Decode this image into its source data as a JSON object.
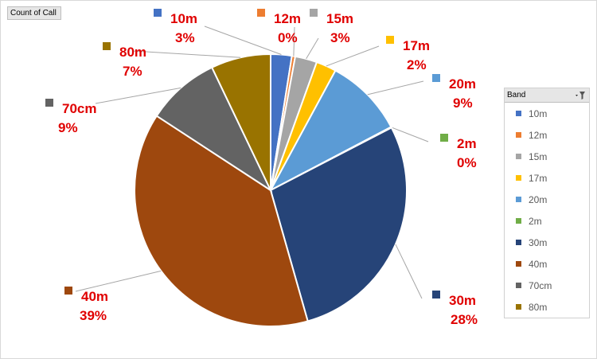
{
  "field_button": "Count of Call",
  "legend": {
    "title": "Band",
    "filter_icon": "filter-dropdown-icon"
  },
  "chart_data": {
    "type": "pie",
    "title": "",
    "categories": [
      "10m",
      "12m",
      "15m",
      "17m",
      "20m",
      "2m",
      "30m",
      "40m",
      "70cm",
      "80m"
    ],
    "values": [
      2.5,
      0.4,
      2.6,
      2.4,
      9.4,
      0.1,
      28.2,
      38.6,
      8.7,
      7.1
    ],
    "percent_labels": [
      "3%",
      "0%",
      "3%",
      "2%",
      "9%",
      "0%",
      "28%",
      "39%",
      "9%",
      "7%"
    ],
    "colors": [
      "#4472c4",
      "#ed7d31",
      "#a5a5a5",
      "#ffc000",
      "#5b9bd5",
      "#70ad47",
      "#264478",
      "#9e480e",
      "#636363",
      "#997300"
    ],
    "legend_position": "right",
    "label_color": "#e00000"
  }
}
